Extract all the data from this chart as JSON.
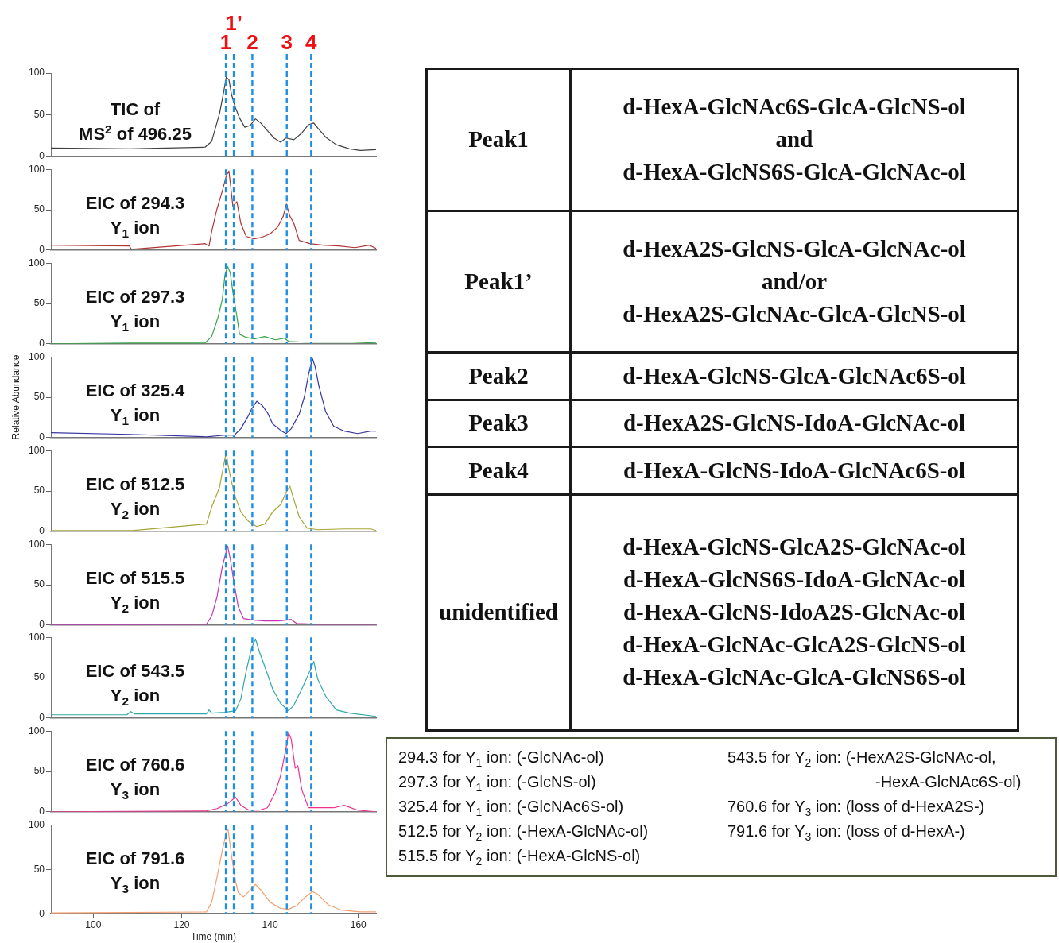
{
  "chart_data": [
    {
      "type": "line",
      "annotations": [
        "TIC of",
        "MS$^{2}$ of 496.25",
        "1",
        "1’",
        "2",
        "3",
        "4"
      ],
      "xlim": [
        90.4,
        164
      ],
      "ylim": [
        0,
        100
      ],
      "yticks": [
        0,
        50,
        100
      ],
      "tick_labels": "y",
      "x": [
        90.4,
        108.2,
        125.3,
        126.8,
        128.6,
        129.5,
        130.1,
        130.7,
        131.3,
        132.2,
        133.1,
        134.3,
        135.5,
        136.7,
        137.9,
        139.4,
        140.9,
        142.4,
        143.6,
        145.4,
        147.2,
        148.7,
        149.9,
        150.8,
        152.6,
        155.0,
        158.0,
        160.4,
        164
      ],
      "series": [
        {
          "color": "#404040",
          "values": [
            10,
            9,
            11,
            18,
            52,
            77,
            95,
            92,
            74,
            58,
            46,
            35,
            37,
            45,
            40,
            31,
            22,
            17,
            22,
            20,
            28,
            38,
            40,
            34,
            23,
            14,
            9,
            7,
            8
          ]
        }
      ],
      "ref_lines": [
        {
          "axis": "x",
          "value": 130,
          "color": "#1e8fe0",
          "line_style": "dashed"
        },
        {
          "axis": "x",
          "value": 131.8,
          "color": "#1e8fe0",
          "line_style": "dashed"
        },
        {
          "axis": "x",
          "value": 136,
          "color": "#1e8fe0",
          "line_style": "dashed"
        },
        {
          "axis": "x",
          "value": 143.8,
          "color": "#1e8fe0",
          "line_style": "dashed"
        },
        {
          "axis": "x",
          "value": 149.3,
          "color": "#1e8fe0",
          "line_style": "dashed"
        }
      ]
    },
    {
      "type": "line",
      "annotations": [
        "EIC of 294.3",
        "Y$_{1}$ ion"
      ],
      "xlim": [
        90.4,
        164
      ],
      "ylim": [
        0,
        100
      ],
      "yticks": [
        0,
        50,
        100
      ],
      "tick_labels": "y",
      "x": [
        90.4,
        108.2,
        108.6,
        125.3,
        126.2,
        126.8,
        128,
        129.2,
        130.1,
        130.7,
        131.1,
        131.6,
        132.5,
        133.4,
        134.6,
        136.4,
        138.2,
        140,
        141.8,
        143,
        143.7,
        144.5,
        145.4,
        146.6,
        149,
        152,
        155.6,
        159.2,
        162.5,
        164
      ],
      "series": [
        {
          "color": "#b03535",
          "values": [
            6,
            5,
            1,
            8,
            5,
            23,
            51,
            73,
            92,
            98,
            79,
            54,
            60,
            33,
            17,
            14,
            16,
            20,
            29,
            42,
            57,
            42,
            33,
            12,
            8,
            6,
            5,
            3,
            6,
            2
          ]
        }
      ],
      "ref_lines": [
        {
          "axis": "x",
          "value": 130,
          "color": "#1e8fe0",
          "line_style": "dashed"
        },
        {
          "axis": "x",
          "value": 131.8,
          "color": "#1e8fe0",
          "line_style": "dashed"
        },
        {
          "axis": "x",
          "value": 136,
          "color": "#1e8fe0",
          "line_style": "dashed"
        },
        {
          "axis": "x",
          "value": 143.8,
          "color": "#1e8fe0",
          "line_style": "dashed"
        },
        {
          "axis": "x",
          "value": 149.3,
          "color": "#1e8fe0",
          "line_style": "dashed"
        }
      ]
    },
    {
      "type": "line",
      "annotations": [
        "EIC of 297.3",
        "Y$_{1}$ ion"
      ],
      "xlim": [
        90.4,
        164
      ],
      "ylim": [
        0,
        100
      ],
      "yticks": [
        0,
        50,
        100
      ],
      "tick_labels": "y",
      "x": [
        90.4,
        108.2,
        125.3,
        126.8,
        128.3,
        129.2,
        129.8,
        130.4,
        131,
        131.6,
        132.5,
        133.1,
        134.6,
        136.4,
        138.8,
        141.2,
        143.3,
        144.2,
        147.8,
        153.8,
        158.6,
        164
      ],
      "series": [
        {
          "color": "#35a545",
          "values": [
            0,
            1,
            1,
            9,
            34,
            55,
            85,
            96,
            88,
            64,
            34,
            12,
            8,
            6,
            9,
            5,
            7,
            3,
            2,
            2,
            2,
            1
          ]
        }
      ],
      "ref_lines": [
        {
          "axis": "x",
          "value": 130,
          "color": "#1e8fe0",
          "line_style": "dashed"
        },
        {
          "axis": "x",
          "value": 131.8,
          "color": "#1e8fe0",
          "line_style": "dashed"
        },
        {
          "axis": "x",
          "value": 136,
          "color": "#1e8fe0",
          "line_style": "dashed"
        },
        {
          "axis": "x",
          "value": 143.8,
          "color": "#1e8fe0",
          "line_style": "dashed"
        },
        {
          "axis": "x",
          "value": 149.3,
          "color": "#1e8fe0",
          "line_style": "dashed"
        }
      ]
    },
    {
      "type": "line",
      "annotations": [
        "EIC of 325.4",
        "Y$_{1}$ ion"
      ],
      "ylabel": "Relative Abundance",
      "xlim": [
        90.4,
        164
      ],
      "ylim": [
        0,
        100
      ],
      "yticks": [
        0,
        50,
        100
      ],
      "tick_labels": "y",
      "x": [
        90.4,
        108.2,
        125.6,
        129.8,
        131.9,
        133.4,
        134.9,
        135.8,
        137,
        138.2,
        139.4,
        140.6,
        142.4,
        143.6,
        144.8,
        146.6,
        147.8,
        148.7,
        149.6,
        150.2,
        151.1,
        152.6,
        154.4,
        156.8,
        159.8,
        162.8,
        164
      ],
      "series": [
        {
          "color": "#3535a0",
          "values": [
            6,
            4,
            1,
            3,
            3,
            11,
            25,
            35,
            45,
            40,
            31,
            17,
            9,
            5,
            11,
            29,
            51,
            78,
            98,
            88,
            63,
            32,
            14,
            8,
            5,
            8,
            8
          ]
        }
      ],
      "ref_lines": [
        {
          "axis": "x",
          "value": 130,
          "color": "#1e8fe0",
          "line_style": "dashed"
        },
        {
          "axis": "x",
          "value": 131.8,
          "color": "#1e8fe0",
          "line_style": "dashed"
        },
        {
          "axis": "x",
          "value": 136,
          "color": "#1e8fe0",
          "line_style": "dashed"
        },
        {
          "axis": "x",
          "value": 143.8,
          "color": "#1e8fe0",
          "line_style": "dashed"
        },
        {
          "axis": "x",
          "value": 149.3,
          "color": "#1e8fe0",
          "line_style": "dashed"
        }
      ]
    },
    {
      "type": "line",
      "annotations": [
        "EIC of 512.5",
        "Y$_{2}$ ion"
      ],
      "xlim": [
        90.4,
        164
      ],
      "ylim": [
        0,
        100
      ],
      "yticks": [
        0,
        50,
        100
      ],
      "tick_labels": "y",
      "x": [
        90.4,
        108.8,
        125.6,
        126.8,
        128.6,
        129.5,
        130.1,
        130.5,
        131.3,
        132.2,
        133.4,
        135.2,
        137,
        138.8,
        140.6,
        142.4,
        143.6,
        144.5,
        145.4,
        146.6,
        148.4,
        150.8,
        156.8,
        162.8,
        164
      ],
      "series": [
        {
          "color": "#a5a535",
          "values": [
            1,
            1,
            9,
            30,
            55,
            82,
            98,
            82,
            61,
            42,
            24,
            12,
            6,
            9,
            24,
            33,
            48,
            56,
            39,
            18,
            4,
            2,
            3,
            3,
            1
          ]
        }
      ],
      "ref_lines": [
        {
          "axis": "x",
          "value": 130,
          "color": "#1e8fe0",
          "line_style": "dashed"
        },
        {
          "axis": "x",
          "value": 131.8,
          "color": "#1e8fe0",
          "line_style": "dashed"
        },
        {
          "axis": "x",
          "value": 136,
          "color": "#1e8fe0",
          "line_style": "dashed"
        },
        {
          "axis": "x",
          "value": 143.8,
          "color": "#1e8fe0",
          "line_style": "dashed"
        },
        {
          "axis": "x",
          "value": 149.3,
          "color": "#1e8fe0",
          "line_style": "dashed"
        }
      ]
    },
    {
      "type": "line",
      "annotations": [
        "EIC of 515.5",
        "Y$_{2}$ ion"
      ],
      "xlim": [
        90.4,
        164
      ],
      "ylim": [
        0,
        100
      ],
      "yticks": [
        0,
        50,
        100
      ],
      "tick_labels": "y",
      "x": [
        90.4,
        125.6,
        126.8,
        128,
        129.2,
        130.4,
        131,
        131.9,
        132.8,
        134,
        136.4,
        138.8,
        141.8,
        143.6,
        144.8,
        146,
        150.8,
        164
      ],
      "series": [
        {
          "color": "#c035b5",
          "values": [
            0,
            1,
            11,
            35,
            72,
            98,
            82,
            51,
            23,
            8,
            6,
            5,
            5,
            6,
            7,
            2,
            1,
            1
          ]
        }
      ],
      "ref_lines": [
        {
          "axis": "x",
          "value": 130,
          "color": "#1e8fe0",
          "line_style": "dashed"
        },
        {
          "axis": "x",
          "value": 131.8,
          "color": "#1e8fe0",
          "line_style": "dashed"
        },
        {
          "axis": "x",
          "value": 136,
          "color": "#1e8fe0",
          "line_style": "dashed"
        },
        {
          "axis": "x",
          "value": 143.8,
          "color": "#1e8fe0",
          "line_style": "dashed"
        },
        {
          "axis": "x",
          "value": 149.3,
          "color": "#1e8fe0",
          "line_style": "dashed"
        }
      ]
    },
    {
      "type": "line",
      "annotations": [
        "EIC of 543.5",
        "Y$_{2}$ ion"
      ],
      "xlim": [
        90.4,
        164
      ],
      "ylim": [
        0,
        100
      ],
      "yticks": [
        0,
        50,
        100
      ],
      "tick_labels": "y",
      "x": [
        90.4,
        107.6,
        108.5,
        109.4,
        125.6,
        126.2,
        126.8,
        129.8,
        132.2,
        133.4,
        134.6,
        135.8,
        136.7,
        137.6,
        138.8,
        140.6,
        142.4,
        144.2,
        145.4,
        147.2,
        149,
        149.9,
        150.8,
        152.6,
        155,
        158,
        164
      ],
      "series": [
        {
          "color": "#30a8a8",
          "values": [
            4,
            4,
            8,
            5,
            5,
            10,
            6,
            7,
            9,
            24,
            58,
            86,
            98,
            82,
            64,
            36,
            18,
            9,
            16,
            36,
            58,
            70,
            48,
            27,
            10,
            6,
            2
          ]
        }
      ],
      "ref_lines": [
        {
          "axis": "x",
          "value": 130,
          "color": "#1e8fe0",
          "line_style": "dashed"
        },
        {
          "axis": "x",
          "value": 131.8,
          "color": "#1e8fe0",
          "line_style": "dashed"
        },
        {
          "axis": "x",
          "value": 136,
          "color": "#1e8fe0",
          "line_style": "dashed"
        },
        {
          "axis": "x",
          "value": 143.8,
          "color": "#1e8fe0",
          "line_style": "dashed"
        },
        {
          "axis": "x",
          "value": 149.3,
          "color": "#1e8fe0",
          "line_style": "dashed"
        }
      ]
    },
    {
      "type": "line",
      "annotations": [
        "EIC of 760.6",
        "Y$_{3}$ ion"
      ],
      "xlim": [
        90.4,
        164
      ],
      "ylim": [
        0,
        100
      ],
      "yticks": [
        0,
        50,
        100
      ],
      "tick_labels": "y",
      "x": [
        90.4,
        125.6,
        128,
        130.4,
        132.2,
        133.4,
        135.2,
        137.6,
        139.4,
        141.2,
        142.4,
        143.6,
        144.2,
        144.8,
        145.7,
        146.3,
        147.2,
        148.7,
        150.8,
        154.4,
        156.8,
        159.8,
        164
      ],
      "series": [
        {
          "color": "#f0308f",
          "values": [
            0,
            1,
            4,
            10,
            18,
            8,
            2,
            2,
            5,
            24,
            45,
            78,
            98,
            90,
            54,
            57,
            27,
            5,
            5,
            5,
            8,
            2,
            0
          ]
        }
      ],
      "ref_lines": [
        {
          "axis": "x",
          "value": 130,
          "color": "#1e8fe0",
          "line_style": "dashed"
        },
        {
          "axis": "x",
          "value": 131.8,
          "color": "#1e8fe0",
          "line_style": "dashed"
        },
        {
          "axis": "x",
          "value": 136,
          "color": "#1e8fe0",
          "line_style": "dashed"
        },
        {
          "axis": "x",
          "value": 143.8,
          "color": "#1e8fe0",
          "line_style": "dashed"
        },
        {
          "axis": "x",
          "value": 149.3,
          "color": "#1e8fe0",
          "line_style": "dashed"
        }
      ]
    },
    {
      "type": "line",
      "annotations": [
        "EIC of 791.6",
        "Y$_{3}$ ion"
      ],
      "xlabel": "Time (min)",
      "xlim": [
        90.4,
        164
      ],
      "xticks": [
        100,
        120,
        140,
        160
      ],
      "ylim": [
        0,
        100
      ],
      "yticks": [
        0,
        50,
        100
      ],
      "x": [
        90.4,
        125.6,
        126.8,
        128,
        129.2,
        130.1,
        130.5,
        131.3,
        132.2,
        132.8,
        134,
        135.2,
        136.7,
        138.2,
        140,
        142.4,
        144.2,
        146,
        147.8,
        149.6,
        150.8,
        153.2,
        156.2,
        160.4,
        164
      ],
      "series": [
        {
          "color": "#f5a070",
          "values": [
            1,
            2,
            13,
            41,
            71,
            91,
            95,
            65,
            37,
            24,
            19,
            25,
            33,
            25,
            13,
            6,
            5,
            9,
            18,
            25,
            22,
            10,
            4,
            2,
            2
          ]
        }
      ],
      "ref_lines": [
        {
          "axis": "x",
          "value": 130,
          "color": "#1e8fe0",
          "line_style": "dashed"
        },
        {
          "axis": "x",
          "value": 131.8,
          "color": "#1e8fe0",
          "line_style": "dashed"
        },
        {
          "axis": "x",
          "value": 136,
          "color": "#1e8fe0",
          "line_style": "dashed"
        },
        {
          "axis": "x",
          "value": 143.8,
          "color": "#1e8fe0",
          "line_style": "dashed"
        },
        {
          "axis": "x",
          "value": 149.3,
          "color": "#1e8fe0",
          "line_style": "dashed"
        }
      ]
    },
    {
      "type": "other",
      "annotations": [
        "Peak1",
        "d-HexA-GlcNAc6S-GlcA-GlcNS-ol\nand\nd-HexA-GlcNS6S-GlcA-GlcNAc-ol",
        "Peak1’",
        "d-HexA2S-GlcNS-GlcA-GlcNAc-ol\nand/or\nd-HexA2S-GlcNAc-GlcA-GlcNS-ol",
        "Peak2",
        "d-HexA-GlcNS-GlcA-GlcNAc6S-ol",
        "Peak3",
        "d-HexA2S-GlcNS-IdoA-GlcNAc-ol",
        "Peak4",
        "d-HexA-GlcNS-IdoA-GlcNAc6S-ol",
        "unidentified",
        "d-HexA-GlcNS-GlcA2S-GlcNAc-ol\nd-HexA-GlcNS6S-IdoA-GlcNAc-ol\nd-HexA-GlcNS-IdoA2S-GlcNAc-ol\nd-HexA-GlcNAc-GlcA2S-GlcNS-ol\nd-HexA-GlcNAc-GlcA-GlcNS6S-ol"
      ]
    },
    {
      "type": "other",
      "annotations": [
        "294.3 for Y$_{1}$ ion: (-GlcNAc-ol)",
        "297.3 for Y$_{1}$ ion: (-GlcNS-ol)",
        "325.4 for Y$_{1}$ ion: (-GlcNAc6S-ol)",
        "512.5 for Y$_{2}$ ion: (-HexA-GlcNAc-ol)",
        "515.5 for Y$_{2}$ ion: (-HexA-GlcNS-ol)",
        "543.5 for Y$_{2}$ ion: (-HexA2S-GlcNAc-ol, -HexA-GlcNAc6S-ol)",
        "760.6 for Y$_{3}$ ion: (loss of d-HexA2S-)",
        "791.6 for Y$_{3}$ ion: (loss of d-HexA-)"
      ]
    }
  ]
}
